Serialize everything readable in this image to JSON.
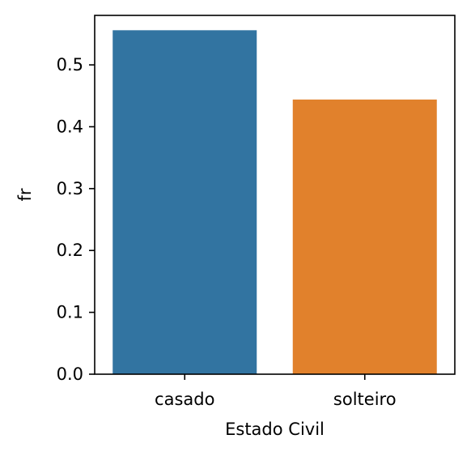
{
  "chart_data": {
    "type": "bar",
    "categories": [
      "casado",
      "solteiro"
    ],
    "values": [
      0.556,
      0.444
    ],
    "colors": [
      "#3274a1",
      "#e1812c"
    ],
    "title": "",
    "xlabel": "Estado Civil",
    "ylabel": "fr",
    "ylim": [
      0,
      0.58
    ],
    "yticks": [
      "0.0",
      "0.1",
      "0.2",
      "0.3",
      "0.4",
      "0.5"
    ],
    "grid": false
  }
}
